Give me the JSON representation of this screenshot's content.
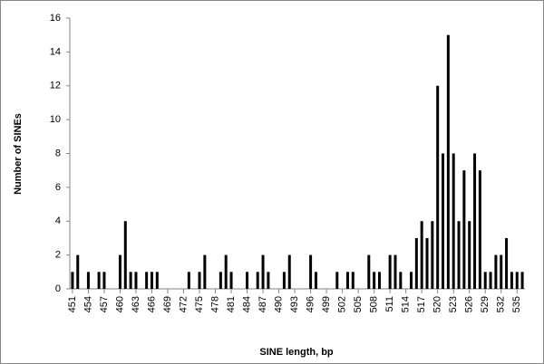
{
  "chart_data": {
    "type": "bar",
    "x_label": "SINE length, bp",
    "y_label": "Number of SINEs",
    "categories": [
      "451",
      null,
      null,
      "454",
      null,
      null,
      "457",
      null,
      null,
      "460",
      null,
      null,
      "463",
      null,
      null,
      "466",
      null,
      null,
      "469",
      null,
      null,
      "472",
      null,
      null,
      "475",
      null,
      null,
      "478",
      null,
      null,
      "481",
      null,
      null,
      "484",
      null,
      null,
      "487",
      null,
      null,
      "490",
      null,
      null,
      "493",
      null,
      null,
      "496",
      null,
      null,
      "499",
      null,
      null,
      "502",
      null,
      null,
      "505",
      null,
      null,
      "508",
      null,
      null,
      "511",
      null,
      null,
      "514",
      null,
      null,
      "517",
      null,
      null,
      "520",
      null,
      null,
      "523",
      null,
      null,
      "526",
      null,
      null,
      "529",
      null,
      null,
      "532",
      null,
      null,
      "535",
      null
    ],
    "values": [
      1,
      2,
      0,
      1,
      0,
      1,
      1,
      0,
      0,
      2,
      4,
      1,
      1,
      0,
      1,
      1,
      1,
      0,
      0,
      0,
      0,
      0,
      1,
      0,
      1,
      2,
      0,
      0,
      1,
      2,
      1,
      0,
      0,
      1,
      0,
      1,
      2,
      1,
      0,
      0,
      1,
      2,
      0,
      0,
      0,
      2,
      1,
      0,
      0,
      0,
      1,
      0,
      1,
      1,
      0,
      0,
      2,
      1,
      1,
      0,
      2,
      2,
      1,
      0,
      1,
      3,
      4,
      3,
      4,
      12,
      8,
      15,
      8,
      4,
      7,
      4,
      8,
      7,
      1,
      1,
      2,
      2,
      3,
      1,
      1,
      1
    ],
    "color": "#000000",
    "ylim": [
      0,
      16
    ],
    "yticks": [
      0,
      2,
      4,
      6,
      8,
      10,
      12,
      14,
      16
    ],
    "grid": false
  }
}
